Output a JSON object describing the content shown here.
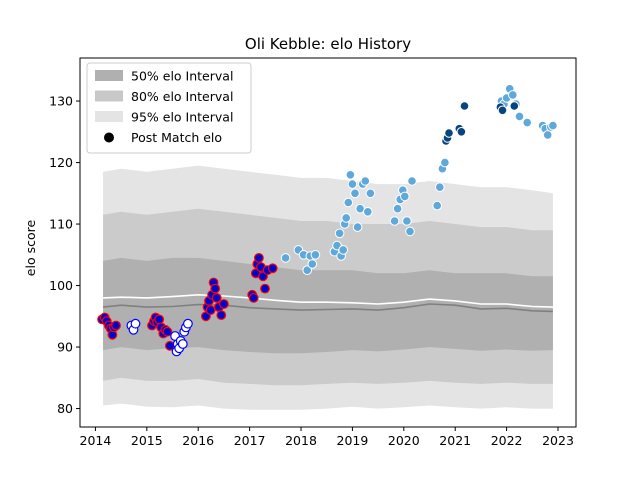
{
  "chart_data": {
    "type": "scatter",
    "title": "Oli Kebble: elo History",
    "xlabel": "",
    "ylabel": "elo score",
    "xlim": [
      2013.7,
      2023.35
    ],
    "ylim": [
      77,
      137
    ],
    "x_ticks": [
      2014,
      2015,
      2016,
      2017,
      2018,
      2019,
      2020,
      2021,
      2022,
      2023
    ],
    "y_ticks": [
      80,
      90,
      100,
      110,
      120,
      130
    ],
    "grid": false,
    "legend_position": "top-left",
    "legend": [
      {
        "label": "50% elo Interval",
        "kind": "band",
        "color": "#b0b0b0"
      },
      {
        "label": "80% elo Interval",
        "kind": "band",
        "color": "#c8c8c8"
      },
      {
        "label": "95% elo Interval",
        "kind": "band",
        "color": "#e4e4e4"
      },
      {
        "label": "Post Match elo",
        "kind": "marker",
        "color": "#000000"
      }
    ],
    "colors": {
      "band_50": "#b0b0b0",
      "band_80": "#cbcbcb",
      "band_95": "#e4e4e4",
      "median_line": "#808080",
      "mean_line": "#ffffff",
      "red_edge": "#ff0000",
      "blue_fill": "#0000cd",
      "white_fill": "#ffffff",
      "blue_edge": "#0000ff",
      "light_blue": "#5fa8dc",
      "dark_blue": "#08457e"
    },
    "bands": {
      "x": [
        2014.15,
        2014.5,
        2015.0,
        2015.5,
        2016.0,
        2016.5,
        2017.0,
        2017.5,
        2018.0,
        2018.5,
        2019.0,
        2019.5,
        2020.0,
        2020.5,
        2021.0,
        2021.5,
        2022.0,
        2022.5,
        2022.9
      ],
      "p95_hi": [
        118.5,
        119.0,
        118.5,
        119.0,
        119.5,
        119.0,
        118.5,
        118.0,
        117.5,
        117.5,
        117.0,
        116.5,
        116.5,
        117.0,
        116.5,
        116.0,
        116.0,
        115.5,
        115.0
      ],
      "p80_hi": [
        111.5,
        112.0,
        111.5,
        112.0,
        112.5,
        112.0,
        111.5,
        111.0,
        110.5,
        110.5,
        110.0,
        110.0,
        110.0,
        110.5,
        110.0,
        109.5,
        109.5,
        109.0,
        109.0
      ],
      "p50_hi": [
        104.0,
        104.5,
        104.0,
        104.5,
        104.5,
        104.0,
        103.5,
        103.0,
        102.5,
        102.5,
        102.5,
        102.0,
        102.0,
        102.5,
        102.0,
        102.0,
        102.0,
        101.5,
        101.5
      ],
      "median": [
        96.5,
        96.8,
        96.5,
        96.6,
        96.9,
        96.8,
        96.4,
        96.2,
        96.0,
        96.1,
        96.2,
        96.0,
        96.4,
        97.0,
        96.8,
        96.2,
        96.3,
        95.9,
        95.8
      ],
      "mean": [
        98.0,
        98.1,
        98.0,
        98.2,
        98.5,
        98.3,
        98.0,
        97.6,
        97.3,
        97.3,
        97.2,
        97.0,
        97.3,
        97.8,
        97.5,
        97.0,
        97.0,
        96.6,
        96.5
      ],
      "p50_lo": [
        89.5,
        90.0,
        89.5,
        89.8,
        90.0,
        89.5,
        89.2,
        89.0,
        89.0,
        89.2,
        89.5,
        89.3,
        89.6,
        90.0,
        89.7,
        89.4,
        89.6,
        89.4,
        89.5
      ],
      "p80_lo": [
        84.5,
        85.0,
        84.5,
        84.5,
        84.8,
        84.2,
        84.0,
        83.8,
        83.8,
        84.0,
        84.2,
        84.0,
        84.2,
        84.5,
        84.2,
        84.0,
        84.2,
        84.0,
        84.0
      ],
      "p95_lo": [
        80.5,
        80.8,
        80.3,
        80.2,
        80.5,
        80.0,
        79.8,
        79.8,
        79.8,
        80.0,
        80.3,
        80.0,
        80.2,
        80.5,
        80.2,
        80.0,
        80.2,
        80.0,
        80.0
      ]
    },
    "series": [
      {
        "style": "red-edge-blue",
        "x": [
          2014.13,
          2014.18,
          2014.22,
          2014.26,
          2014.3,
          2014.33,
          2014.36,
          2014.4,
          2015.1,
          2015.14,
          2015.17,
          2015.2,
          2015.24,
          2015.28,
          2015.32,
          2015.36,
          2015.4,
          2015.45,
          2016.15,
          2016.18,
          2016.21,
          2016.24,
          2016.27,
          2016.3,
          2016.33,
          2016.36,
          2016.4,
          2016.45,
          2016.5,
          2017.05,
          2017.08,
          2017.12,
          2017.15,
          2017.18,
          2017.22,
          2017.26,
          2017.3,
          2017.35,
          2017.45
        ],
        "y": [
          94.5,
          94.8,
          94.2,
          93.5,
          93.0,
          92.0,
          93.2,
          93.5,
          93.5,
          94.2,
          94.8,
          94.0,
          94.5,
          93.2,
          92.2,
          92.8,
          92.5,
          90.2,
          95.0,
          96.5,
          97.5,
          96.0,
          98.5,
          100.5,
          99.5,
          98.0,
          96.5,
          95.2,
          97.0,
          98.5,
          98.0,
          102.0,
          103.5,
          104.5,
          103.0,
          101.5,
          99.5,
          102.5,
          102.8
        ]
      },
      {
        "style": "white-blue-edge",
        "x": [
          2014.7,
          2014.74,
          2014.78,
          2015.55,
          2015.58,
          2015.6,
          2015.63,
          2015.66,
          2015.7,
          2015.73,
          2015.76,
          2015.8
        ],
        "y": [
          93.5,
          92.8,
          93.8,
          91.8,
          89.3,
          90.5,
          89.8,
          91.0,
          90.5,
          92.5,
          93.2,
          93.8
        ]
      },
      {
        "style": "light-blue",
        "x": [
          2017.7,
          2017.95,
          2018.05,
          2018.12,
          2018.18,
          2018.22,
          2018.28,
          2018.65,
          2018.7,
          2018.75,
          2018.78,
          2018.82,
          2018.85,
          2018.88,
          2018.92,
          2018.96,
          2019.0,
          2019.05,
          2019.1,
          2019.15,
          2019.2,
          2019.25,
          2019.3,
          2019.35,
          2019.82,
          2019.88,
          2019.93,
          2019.98,
          2020.02,
          2020.06,
          2020.12,
          2020.16,
          2020.65,
          2020.7,
          2020.75,
          2020.8,
          2021.9,
          2021.95,
          2022.0,
          2022.06,
          2022.12,
          2022.18,
          2022.25,
          2022.4,
          2022.7,
          2022.75,
          2022.8,
          2022.86,
          2022.9
        ],
        "y": [
          104.5,
          105.8,
          105.0,
          102.5,
          104.8,
          103.5,
          105.0,
          105.5,
          106.5,
          108.5,
          104.8,
          105.8,
          110.0,
          111.0,
          113.5,
          118.0,
          116.5,
          115.0,
          109.5,
          112.5,
          116.5,
          117.0,
          112.0,
          115.0,
          110.5,
          112.5,
          114.0,
          115.5,
          114.5,
          110.5,
          108.8,
          117.0,
          113.0,
          116.0,
          119.0,
          120.0,
          130.0,
          129.5,
          130.5,
          132.0,
          131.0,
          129.5,
          127.5,
          126.5,
          126.0,
          125.5,
          124.5,
          125.8,
          126.0
        ]
      },
      {
        "style": "dark-blue",
        "x": [
          2020.82,
          2020.85,
          2020.88,
          2021.08,
          2021.12,
          2021.18,
          2021.88,
          2021.92,
          2022.15
        ],
        "y": [
          123.5,
          124.0,
          124.8,
          125.5,
          125.0,
          129.2,
          129.0,
          128.5,
          129.2
        ]
      }
    ]
  }
}
